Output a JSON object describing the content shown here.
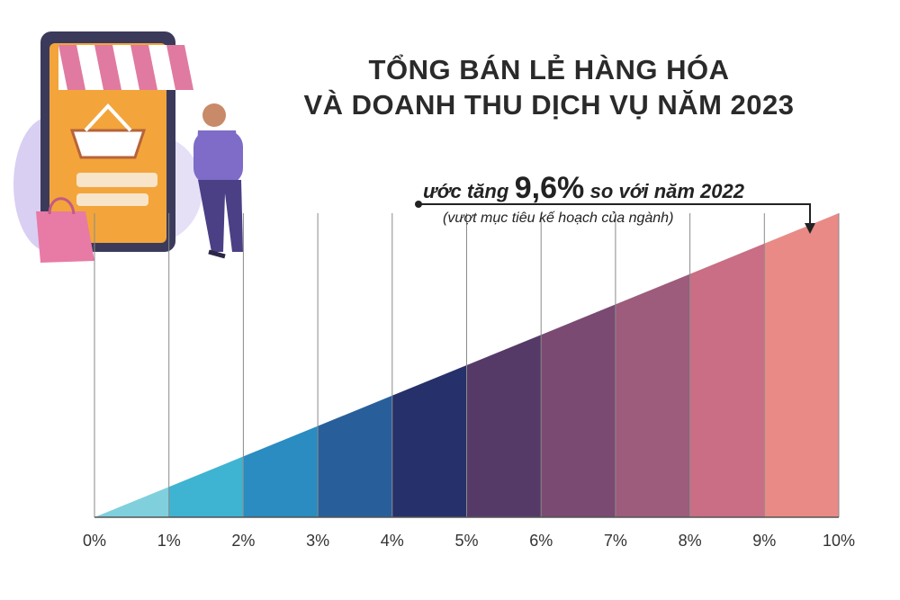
{
  "title_lines": [
    "TỔNG BÁN LẺ HÀNG HÓA",
    "VÀ DOANH THU DỊCH VỤ NĂM 2023"
  ],
  "annotation": {
    "prefix": "ước tăng",
    "value": "9,6%",
    "suffix": "so với năm 2022",
    "sub": "(vượt mục tiêu kế hoạch của ngành)"
  },
  "illustration": {
    "description_icon": "shopping-app-illustration",
    "colors": {
      "phone": "#f3a53b",
      "awning_pink": "#e07aa0",
      "person_shirt": "#7e6cc8",
      "bag": "#e87aa6"
    }
  },
  "chart_data": {
    "type": "area",
    "title": "TỔNG BÁN LẺ HÀNG HÓA VÀ DOANH THU DỊCH VỤ NĂM 2023",
    "x_ticks": [
      "0%",
      "1%",
      "2%",
      "3%",
      "4%",
      "5%",
      "6%",
      "7%",
      "8%",
      "9%",
      "10%"
    ],
    "xlim": [
      0,
      10
    ],
    "highlight_value": 9.6,
    "band_colors": [
      "#7fd0dc",
      "#3fb3d2",
      "#2a8cc0",
      "#285f9b",
      "#26306a",
      "#553a68",
      "#7a4a72",
      "#9d5c7b",
      "#c96e84",
      "#e98a86"
    ],
    "grid": true
  }
}
